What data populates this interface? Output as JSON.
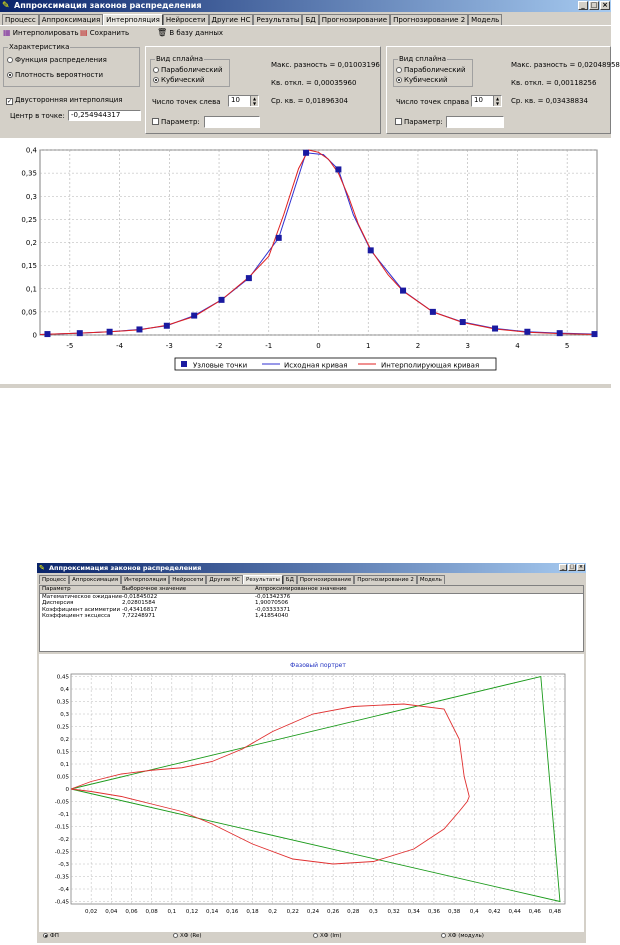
{
  "window1": {
    "title": "Аппроксимация законов распределения",
    "tabs": [
      "Процесс",
      "Аппроксимация",
      "Интерполяция",
      "Нейросети",
      "Другие НС",
      "Результаты",
      "БД",
      "Прогнозирование",
      "Прогнозирование 2",
      "Модель"
    ],
    "active_tab": 2,
    "toolbar": {
      "interpolate": "Интерполировать",
      "save": "Сохранить",
      "to_db": "В базу данных"
    },
    "characteristic": {
      "title": "Характеристика",
      "options": [
        "Функция распределения",
        "Плотность вероятности"
      ],
      "selected": 1
    },
    "two_sided": {
      "label": "Двусторонняя интерполяция",
      "checked": true
    },
    "center": {
      "label": "Центр в точке:",
      "value": "-0,254944317"
    },
    "left": {
      "spline_title": "Вид сплайна",
      "options": [
        "Параболический",
        "Кубический"
      ],
      "selected": 1,
      "points_label": "Число точек слева",
      "points_value": "10",
      "param_label": "Параметр:",
      "max_diff": "Макс. разность = 0,01003196",
      "sq_dev": "Кв. откл. = 0,00035960",
      "mean_sq": "Ср. кв. = 0,01896304"
    },
    "right": {
      "spline_title": "Вид сплайна",
      "options": [
        "Параболический",
        "Кубический"
      ],
      "selected": 1,
      "points_label": "Число точек справа",
      "points_value": "10",
      "param_label": "Параметр:",
      "max_diff": "Макс. разность = 0,02048958",
      "sq_dev": "Кв. откл. = 0,00118256",
      "mean_sq": "Ср. кв. = 0,03438834"
    }
  },
  "chart_data": [
    {
      "type": "line",
      "xlim": [
        -5.6,
        5.6
      ],
      "ylim": [
        0,
        0.4
      ],
      "x_ticks": [
        "-5",
        "-4",
        "-3",
        "-2",
        "-1",
        "0",
        "1",
        "2",
        "3",
        "4",
        "5"
      ],
      "y_ticks": [
        "0",
        "0,05",
        "0,1",
        "0,15",
        "0,2",
        "0,25",
        "0,3",
        "0,35",
        "0,4"
      ],
      "grid": true,
      "legend_position": "bottom",
      "series": [
        {
          "name": "Узловые точки",
          "kind": "markers",
          "color": "#1a1aa0",
          "x": [
            -5.45,
            -4.8,
            -4.2,
            -3.6,
            -3.05,
            -2.5,
            -1.95,
            -1.4,
            -0.8,
            -0.25,
            0.4,
            1.05,
            1.7,
            2.3,
            2.9,
            3.55,
            4.2,
            4.85,
            5.55
          ],
          "y": [
            0.002,
            0.004,
            0.007,
            0.012,
            0.02,
            0.042,
            0.076,
            0.123,
            0.21,
            0.394,
            0.358,
            0.183,
            0.096,
            0.05,
            0.028,
            0.014,
            0.007,
            0.004,
            0.002
          ]
        },
        {
          "name": "Исходная кривая",
          "kind": "line",
          "color": "#3030d0",
          "x": [
            -5.6,
            -4.8,
            -4.2,
            -3.6,
            -3.05,
            -2.5,
            -1.95,
            -1.4,
            -0.8,
            -0.5,
            -0.25,
            0.1,
            0.4,
            0.7,
            1.05,
            1.7,
            2.3,
            2.9,
            3.55,
            4.2,
            4.85,
            5.6
          ],
          "y": [
            0.001,
            0.004,
            0.007,
            0.012,
            0.02,
            0.042,
            0.076,
            0.123,
            0.21,
            0.31,
            0.394,
            0.39,
            0.358,
            0.26,
            0.183,
            0.096,
            0.05,
            0.028,
            0.014,
            0.007,
            0.004,
            0.002
          ]
        },
        {
          "name": "Интерполирующая кривая",
          "kind": "line",
          "color": "#e02020",
          "x": [
            -5.6,
            -4.8,
            -4.2,
            -3.6,
            -3.05,
            -2.5,
            -1.95,
            -1.4,
            -1.0,
            -0.7,
            -0.4,
            -0.2,
            0.0,
            0.2,
            0.4,
            0.6,
            0.8,
            1.05,
            1.4,
            1.7,
            2.3,
            2.9,
            3.55,
            4.2,
            4.85,
            5.6
          ],
          "y": [
            0.001,
            0.004,
            0.007,
            0.011,
            0.021,
            0.04,
            0.076,
            0.125,
            0.17,
            0.26,
            0.36,
            0.4,
            0.395,
            0.38,
            0.35,
            0.3,
            0.24,
            0.185,
            0.13,
            0.095,
            0.05,
            0.027,
            0.013,
            0.006,
            0.003,
            0.001
          ]
        }
      ]
    },
    {
      "type": "line",
      "title": "Фазовый портрет",
      "xlim": [
        0,
        0.49
      ],
      "ylim": [
        -0.46,
        0.46
      ],
      "x_ticks": [
        "0,02",
        "0,04",
        "0,06",
        "0,08",
        "0,1",
        "0,12",
        "0,14",
        "0,16",
        "0,18",
        "0,2",
        "0,22",
        "0,24",
        "0,26",
        "0,28",
        "0,3",
        "0,32",
        "0,34",
        "0,36",
        "0,38",
        "0,4",
        "0,42",
        "0,44",
        "0,46",
        "0,48"
      ],
      "y_ticks": [
        "0,45",
        "0,4",
        "0,35",
        "0,3",
        "0,25",
        "0,2",
        "0,15",
        "0,1",
        "0,05",
        "0",
        "-0,05",
        "-0,1",
        "-0,15",
        "-0,2",
        "-0,25",
        "-0,3",
        "-0,35",
        "-0,4",
        "-0,45"
      ],
      "grid": true,
      "series": [
        {
          "kind": "line",
          "color": "#1a9a1a",
          "x": [
            0,
            0.466,
            0.485,
            0
          ],
          "y": [
            0,
            0.45,
            -0.45,
            0
          ]
        },
        {
          "kind": "line",
          "color": "#e03030",
          "x": [
            0,
            0.02,
            0.05,
            0.08,
            0.11,
            0.14,
            0.17,
            0.2,
            0.24,
            0.28,
            0.33,
            0.37,
            0.385,
            0.39,
            0.395,
            0.393,
            0.385,
            0.37,
            0.34,
            0.3,
            0.26,
            0.22,
            0.18,
            0.14,
            0.11,
            0.08,
            0.05,
            0.02,
            0
          ],
          "y": [
            0,
            0.03,
            0.06,
            0.075,
            0.085,
            0.11,
            0.16,
            0.23,
            0.3,
            0.33,
            0.34,
            0.32,
            0.2,
            0.05,
            -0.03,
            -0.05,
            -0.09,
            -0.16,
            -0.24,
            -0.29,
            -0.3,
            -0.28,
            -0.22,
            -0.14,
            -0.09,
            -0.06,
            -0.03,
            -0.01,
            0
          ]
        }
      ]
    }
  ],
  "legend1": [
    "Узловые точки",
    "Исходная кривая",
    "Интерполирующая кривая"
  ],
  "window2": {
    "title": "Аппроксимация законов распределения",
    "tabs": [
      "Процесс",
      "Аппроксимация",
      "Интерполяция",
      "Нейросети",
      "Другие НС",
      "Результаты",
      "БД",
      "Прогнозирование",
      "Прогнозирование 2",
      "Модель"
    ],
    "active_tab": 5,
    "table": {
      "headers": [
        "Параметр",
        "Выборочное значение",
        "Аппроксимированное значение"
      ],
      "rows": [
        [
          "Математическое ожидание",
          "-0,01845022",
          "-0,01342376"
        ],
        [
          "Дисперсия",
          "2,02801584",
          "1,90070506"
        ],
        [
          "Коэффициент асимметрии",
          "-0,43416817",
          "-0,03333371"
        ],
        [
          "Коэффициент эксцесса",
          "7,72248971",
          "1,41854040"
        ]
      ]
    },
    "bottom_options": [
      "ФП",
      "ХФ (Re)",
      "ХФ (Im)",
      "ХФ (модуль)"
    ],
    "bottom_selected": 0
  }
}
